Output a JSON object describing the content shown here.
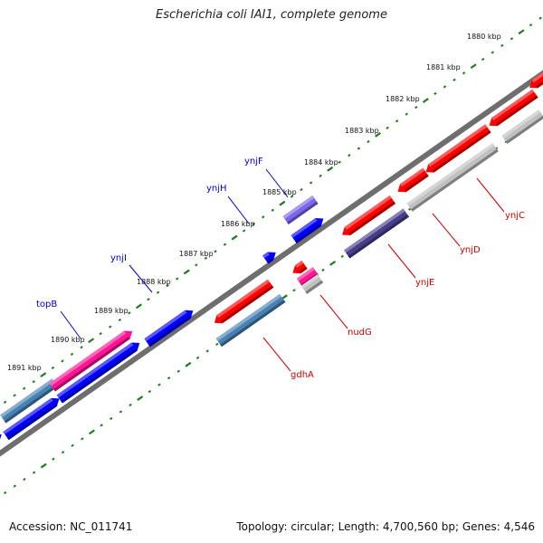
{
  "title": "Escherichia coli IAI1, complete genome",
  "footer": {
    "accession": "Accession: NC_011741",
    "summary": "Topology: circular; Length: 4,700,560 bp; Genes: 4,546"
  },
  "scale_labels": [
    "1880 kbp",
    "1881 kbp",
    "1882 kbp",
    "1883 kbp",
    "1884 kbp",
    "1885 kbp",
    "1886 kbp",
    "1887 kbp",
    "1888 kbp",
    "1889 kbp",
    "1890 kbp",
    "1891 kbp"
  ],
  "gene_labels_forward": [
    "ynjF",
    "ynjH",
    "ynjI",
    "topB"
  ],
  "gene_labels_reverse": [
    "ynjC",
    "ynjD",
    "ynjE",
    "nudG",
    "gdhA"
  ],
  "colors": {
    "backbone": "#808080",
    "tick": "#1f7a1f",
    "forward_label": "#0000cc",
    "reverse_label": "#cc0000",
    "red_gene": "#ff0000",
    "blue_gene": "#0000ff",
    "steel_gene": "#4682b4",
    "pink_gene": "#ff1493",
    "slate_gene": "#483d8b",
    "lavender_gene": "#7b68ee",
    "grey_gene": "#c0c0c0"
  }
}
